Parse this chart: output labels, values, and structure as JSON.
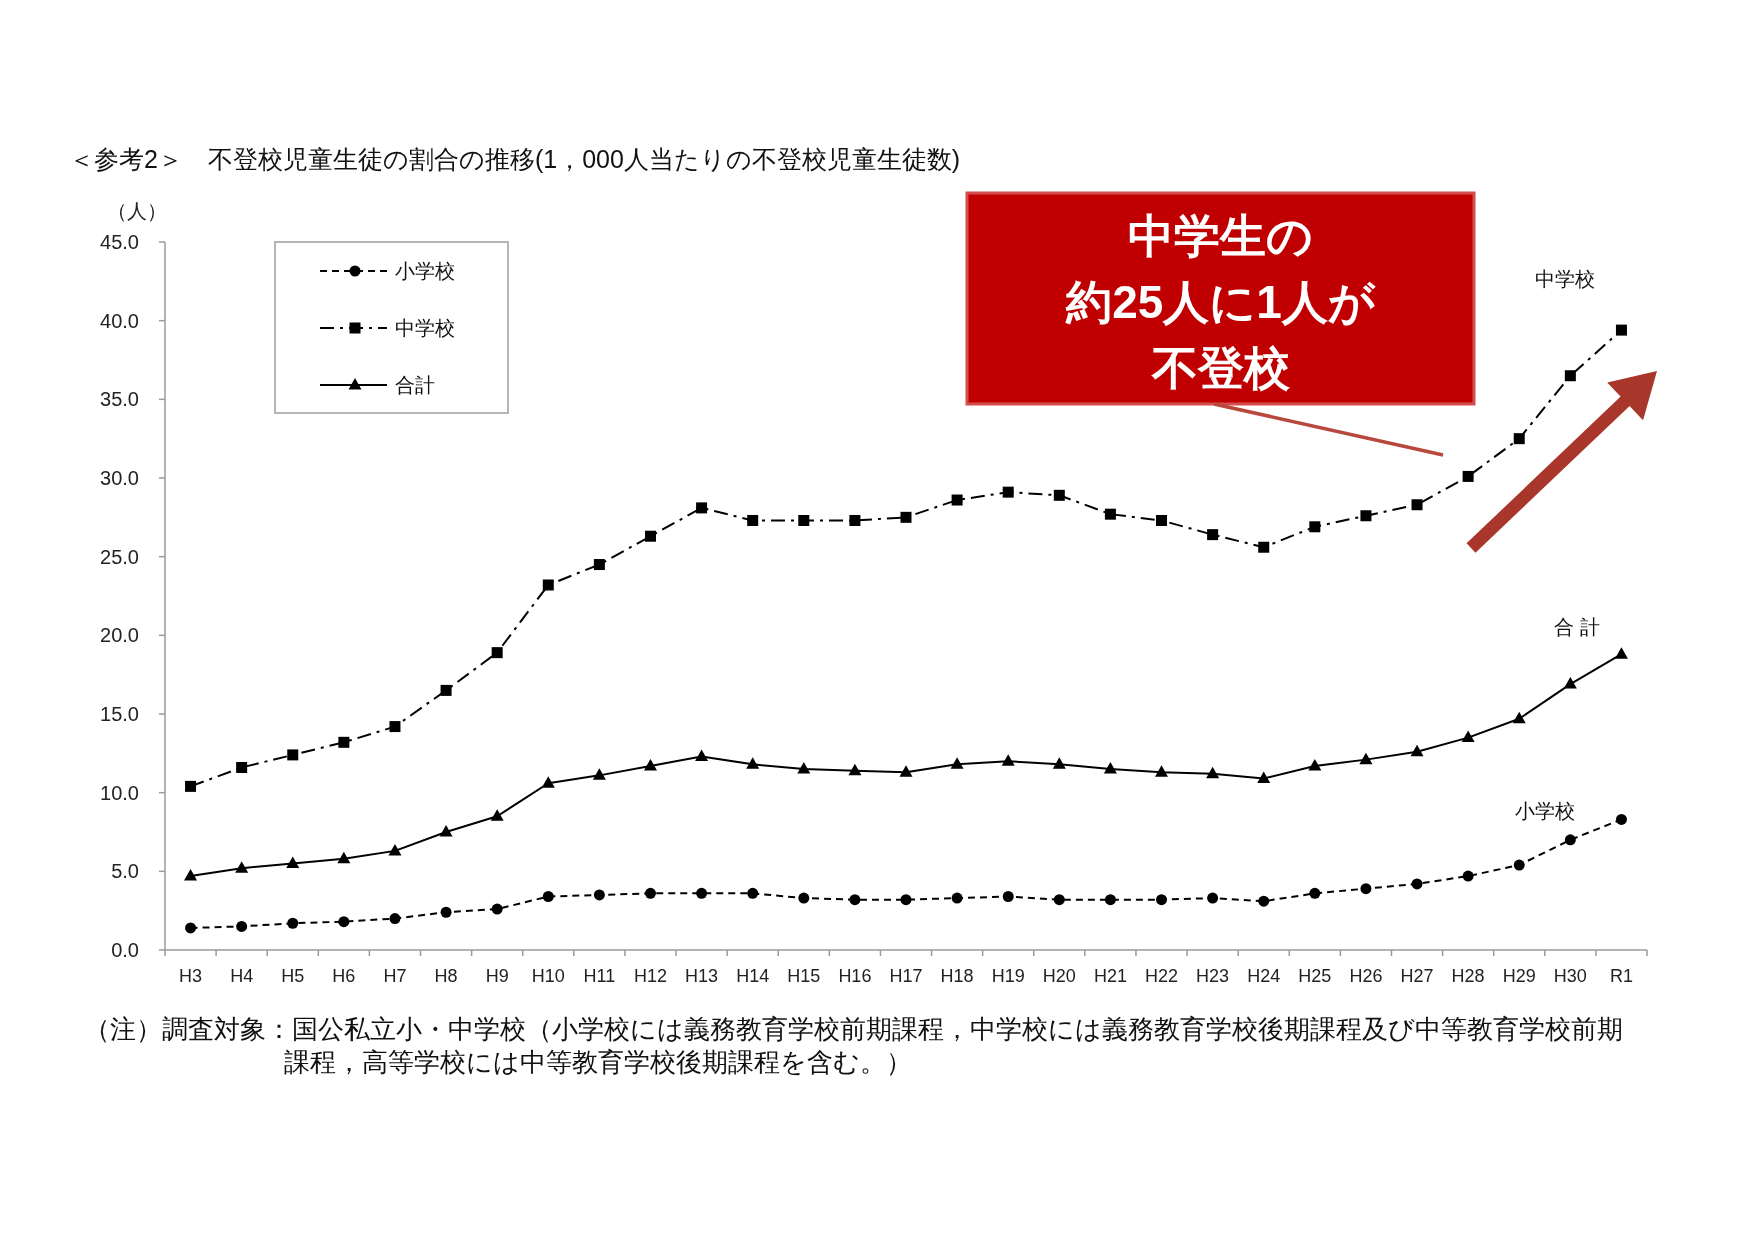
{
  "chart_data": {
    "type": "line",
    "title": "＜参考2＞　不登校児童生徒の割合の推移(1，000人当たりの不登校児童生徒数)",
    "ylabel": "（人）",
    "categories": [
      "H3",
      "H4",
      "H5",
      "H6",
      "H7",
      "H8",
      "H9",
      "H10",
      "H11",
      "H12",
      "H13",
      "H14",
      "H15",
      "H16",
      "H17",
      "H18",
      "H19",
      "H20",
      "H21",
      "H22",
      "H23",
      "H24",
      "H25",
      "H26",
      "H27",
      "H28",
      "H29",
      "H30",
      "R1"
    ],
    "series": [
      {
        "name": "小学校",
        "color": "#000000",
        "marker": "circle",
        "line_style": "dashed",
        "values": [
          1.4,
          1.5,
          1.7,
          1.8,
          2.0,
          2.4,
          2.6,
          3.4,
          3.5,
          3.6,
          3.6,
          3.6,
          3.3,
          3.2,
          3.2,
          3.3,
          3.4,
          3.2,
          3.2,
          3.2,
          3.3,
          3.1,
          3.6,
          3.9,
          4.2,
          4.7,
          5.4,
          7.0,
          8.3
        ]
      },
      {
        "name": "中学校",
        "color": "#000000",
        "marker": "square",
        "line_style": "dashdot",
        "values": [
          10.4,
          11.6,
          12.4,
          13.2,
          14.2,
          16.5,
          18.9,
          23.2,
          24.5,
          26.3,
          28.1,
          27.3,
          27.3,
          27.3,
          27.5,
          28.6,
          29.1,
          28.9,
          27.7,
          27.3,
          26.4,
          25.6,
          26.9,
          27.6,
          28.3,
          30.1,
          32.5,
          36.5,
          39.4
        ]
      },
      {
        "name": "合計",
        "color": "#000000",
        "marker": "triangle",
        "line_style": "solid",
        "values": [
          4.7,
          5.2,
          5.5,
          5.8,
          6.3,
          7.5,
          8.5,
          10.6,
          11.1,
          11.7,
          12.3,
          11.8,
          11.5,
          11.4,
          11.3,
          11.8,
          12.0,
          11.8,
          11.5,
          11.3,
          11.2,
          10.9,
          11.7,
          12.1,
          12.6,
          13.5,
          14.7,
          16.9,
          18.8
        ]
      }
    ],
    "ylim": [
      0,
      45
    ],
    "yticks": [
      {
        "value": 0,
        "label": "0.0"
      },
      {
        "value": 5,
        "label": "5.0"
      },
      {
        "value": 10,
        "label": "10.0"
      },
      {
        "value": 15,
        "label": "15.0"
      },
      {
        "value": 20,
        "label": "20.0"
      },
      {
        "value": 25,
        "label": "25.0"
      },
      {
        "value": 30,
        "label": "30.0"
      },
      {
        "value": 35,
        "label": "35.0"
      },
      {
        "value": 40,
        "label": "40.0"
      },
      {
        "value": 45,
        "label": "45.0"
      }
    ],
    "legend": "top left",
    "annotations": [
      "中学生の",
      "約25人に1人が",
      "不登校",
      "（注）調査対象：国公私立小・中学校（小学校には義務教育学校前期課程，中学校には義務教育学校後期課程及び中等教育学校前期課程，高等学校には中等教育学校後期課程を含む。）",
      "中学校",
      "合 計",
      "小学校"
    ]
  }
}
